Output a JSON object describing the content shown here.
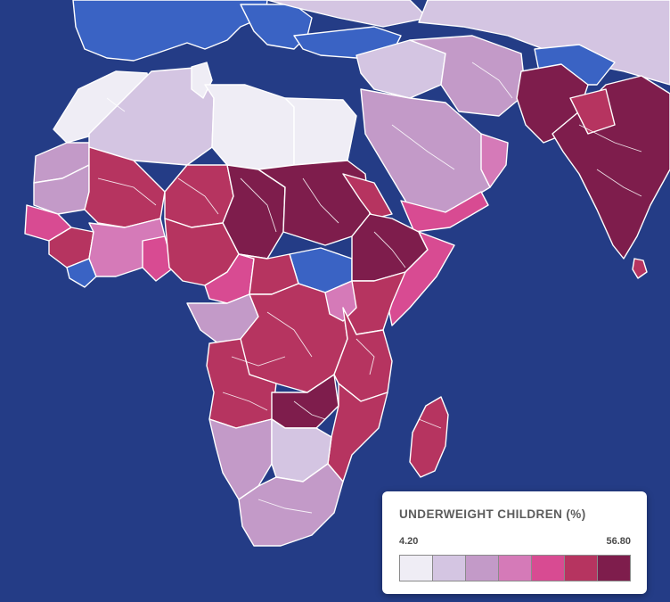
{
  "legend": {
    "title": "UNDERWEIGHT CHILDREN (%)",
    "min_label": "4.20",
    "max_label": "56.80",
    "min_value": 4.2,
    "max_value": 56.8,
    "colors": [
      "#efedf5",
      "#d4c5e2",
      "#c39ac8",
      "#d57ab8",
      "#d84b92",
      "#b63460",
      "#7e1d4c"
    ]
  },
  "theme": {
    "ocean": "#243c86",
    "no_data": "#3a63c4",
    "border": "#ffffff"
  }
}
